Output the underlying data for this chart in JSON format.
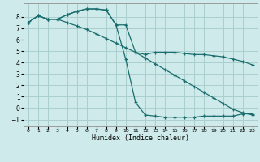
{
  "xlabel": "Humidex (Indice chaleur)",
  "background_color": "#ceeaea",
  "grid_color": "#aacfcf",
  "line_color": "#1a6e6e",
  "xlim": [
    -0.5,
    23.5
  ],
  "ylim": [
    -1.6,
    9.2
  ],
  "xticks": [
    0,
    1,
    2,
    3,
    4,
    5,
    6,
    7,
    8,
    9,
    10,
    11,
    12,
    13,
    14,
    15,
    16,
    17,
    18,
    19,
    20,
    21,
    22,
    23
  ],
  "yticks": [
    -1,
    0,
    1,
    2,
    3,
    4,
    5,
    6,
    7,
    8
  ],
  "line1_x": [
    0,
    1,
    2,
    3,
    4,
    5,
    6,
    7,
    8,
    9,
    10,
    11,
    12,
    13,
    14,
    15,
    16,
    17,
    18,
    19,
    20,
    21,
    22,
    23
  ],
  "line1_y": [
    7.5,
    8.1,
    7.8,
    7.8,
    7.5,
    7.2,
    6.9,
    6.5,
    6.1,
    5.7,
    5.3,
    4.9,
    4.4,
    3.9,
    3.4,
    2.9,
    2.4,
    1.9,
    1.4,
    0.9,
    0.4,
    -0.1,
    -0.4,
    -0.6
  ],
  "line2_x": [
    0,
    1,
    2,
    3,
    4,
    5,
    6,
    7,
    8,
    9,
    10,
    11,
    12,
    13,
    14,
    15,
    16,
    17,
    18,
    19,
    20,
    21,
    22,
    23
  ],
  "line2_y": [
    7.5,
    8.1,
    7.8,
    7.8,
    8.2,
    8.5,
    8.7,
    8.7,
    8.6,
    7.3,
    7.3,
    4.9,
    4.7,
    4.9,
    4.9,
    4.9,
    4.8,
    4.7,
    4.7,
    4.6,
    4.5,
    4.3,
    4.1,
    3.8
  ],
  "line3_x": [
    0,
    1,
    2,
    3,
    4,
    5,
    6,
    7,
    8,
    9,
    10,
    11,
    12,
    13,
    14,
    15,
    16,
    17,
    18,
    19,
    20,
    21,
    22,
    23
  ],
  "line3_y": [
    7.5,
    8.1,
    7.8,
    7.8,
    8.2,
    8.5,
    8.7,
    8.7,
    8.6,
    7.3,
    4.3,
    0.5,
    -0.6,
    -0.7,
    -0.8,
    -0.8,
    -0.8,
    -0.8,
    -0.7,
    -0.7,
    -0.7,
    -0.7,
    -0.5,
    -0.5
  ]
}
